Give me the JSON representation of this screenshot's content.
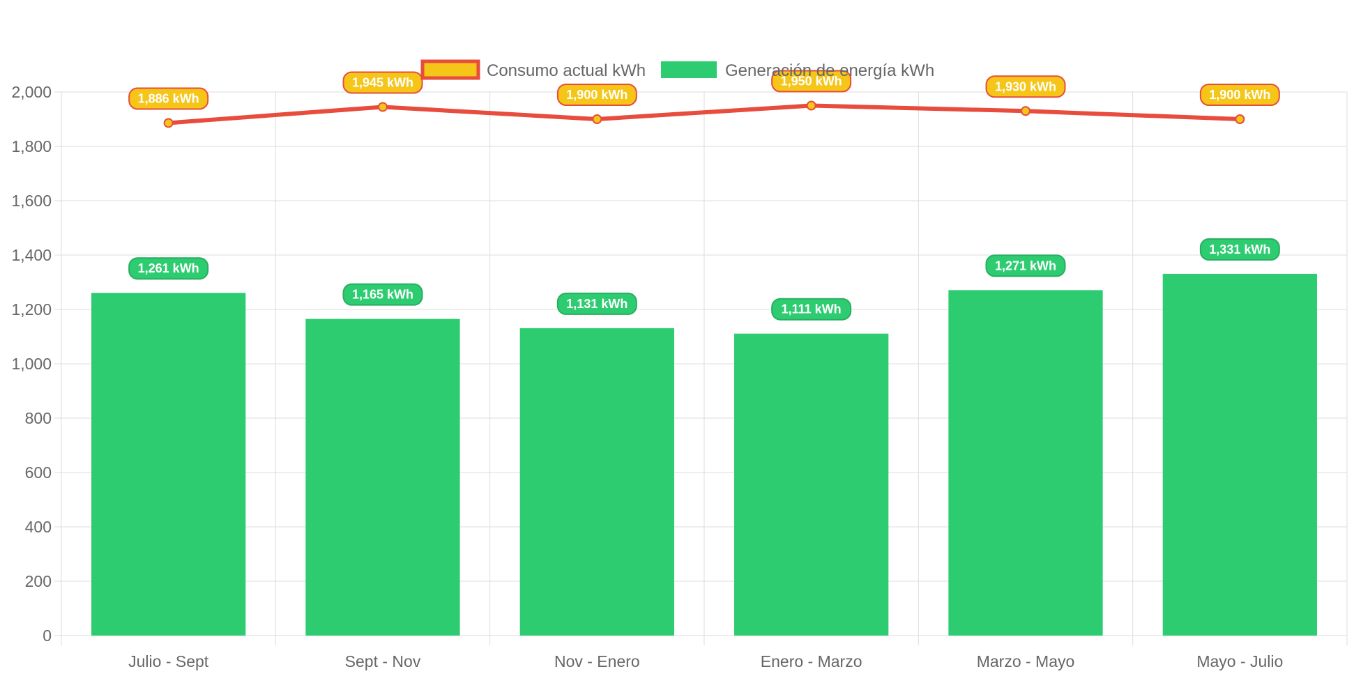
{
  "legend": {
    "items": [
      {
        "label": "Consumo actual kWh",
        "fill": "#f5c518",
        "stroke": "#e74c3c"
      },
      {
        "label": "Generación de energía kWh",
        "fill": "#2ecc71",
        "stroke": "#2ecc71"
      }
    ]
  },
  "colors": {
    "bar": "#2ecc71",
    "bar_label_bg": "#2ecc71",
    "bar_label_border": "#27ae60",
    "line": "#e74c3c",
    "point_fill": "#f5c518",
    "line_label_bg": "#f5c518",
    "line_label_border": "#e74c3c",
    "grid": "#dddddd",
    "text": "#666666"
  },
  "chart_data": {
    "type": "bar",
    "categories": [
      "Julio - Sept",
      "Sept - Nov",
      "Nov - Enero",
      "Enero - Marzo",
      "Marzo - Mayo",
      "Mayo - Julio"
    ],
    "series": [
      {
        "name": "Generación de energía kWh",
        "type": "bar",
        "values": [
          1261,
          1165,
          1131,
          1111,
          1271,
          1331
        ],
        "labels": [
          "1,261 kWh",
          "1,165 kWh",
          "1,131 kWh",
          "1,111 kWh",
          "1,271 kWh",
          "1,331 kWh"
        ]
      },
      {
        "name": "Consumo actual kWh",
        "type": "line",
        "values": [
          1886,
          1945,
          1900,
          1950,
          1930,
          1900
        ],
        "labels": [
          "1,886 kWh",
          "1,945 kWh",
          "1,900 kWh",
          "1,950 kWh",
          "1,930 kWh",
          "1,900 kWh"
        ]
      }
    ],
    "ylim": [
      0,
      2000
    ],
    "y_ticks": [
      0,
      200,
      400,
      600,
      800,
      1000,
      1200,
      1400,
      1600,
      1800,
      2000
    ],
    "y_tick_labels": [
      "0",
      "200",
      "400",
      "600",
      "800",
      "1,000",
      "1,200",
      "1,400",
      "1,600",
      "1,800",
      "2,000"
    ],
    "grid": true,
    "legend_position": "top"
  }
}
